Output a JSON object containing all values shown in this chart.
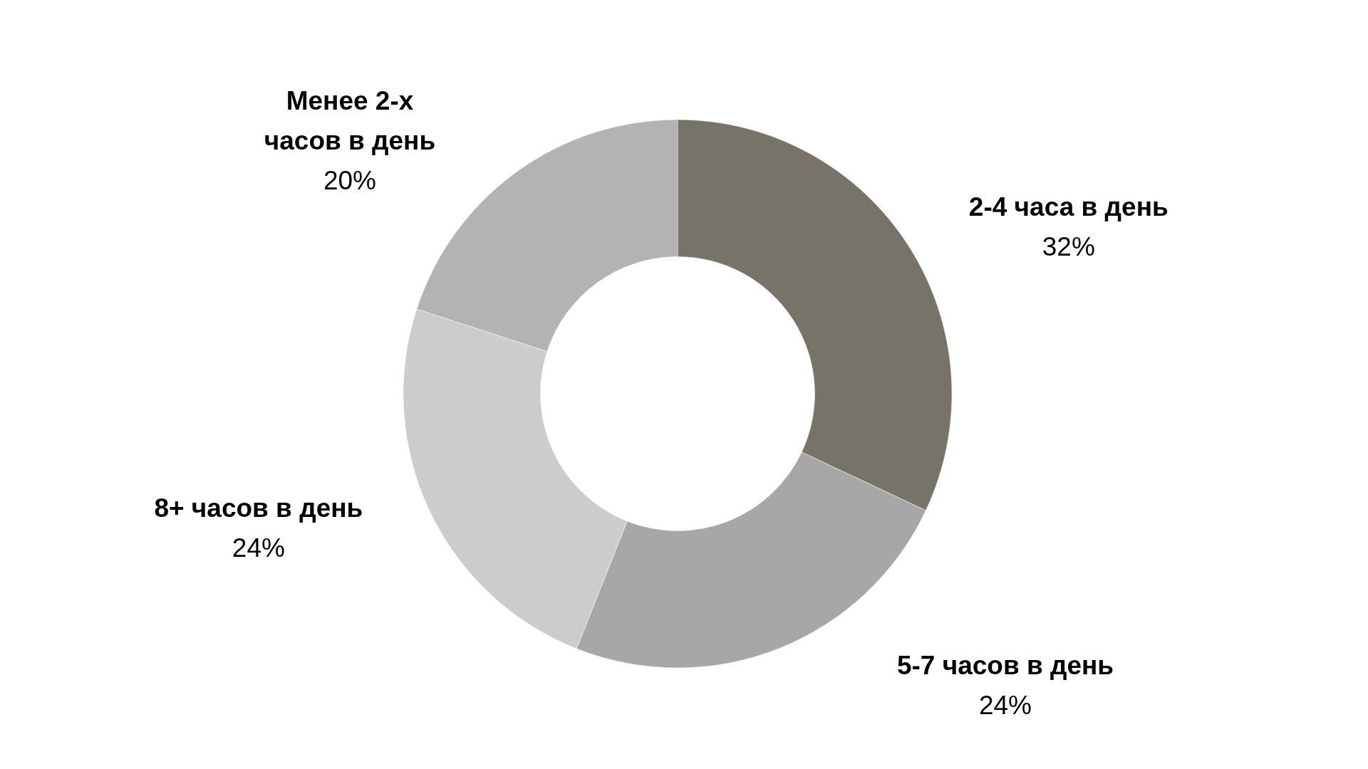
{
  "chart_data": {
    "type": "donut",
    "categories": [
      "2-4 часа в день",
      "5-7 часов в день",
      "8+ часов в день",
      "Менее 2-х часов в день"
    ],
    "values": [
      32,
      24,
      24,
      20
    ],
    "colors": [
      "#777368",
      "#a7a7a7",
      "#cbcccb",
      "#b3b3b3"
    ],
    "value_labels": [
      "32%",
      "24%",
      "24%",
      "20%"
    ]
  }
}
